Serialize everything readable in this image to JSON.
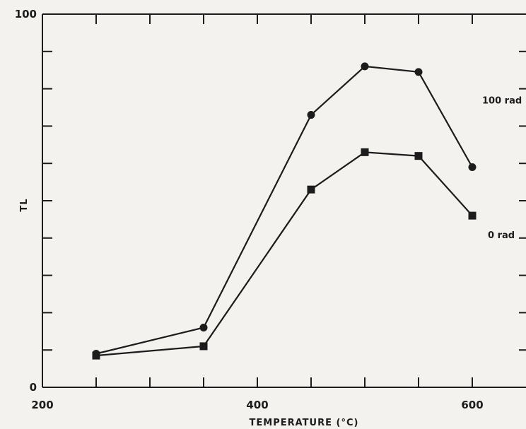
{
  "chart_data": {
    "type": "line",
    "title": "",
    "xlabel": "TEMPERATURE (°C)",
    "ylabel": "TL",
    "xlim": [
      200,
      650
    ],
    "ylim": [
      0,
      100
    ],
    "x_ticks_labeled": [
      200,
      400,
      600
    ],
    "y_ticks_labeled": [
      0,
      100
    ],
    "x_tick_values": [
      250,
      300,
      350,
      400,
      450,
      500,
      550,
      600
    ],
    "y_tick_values": [
      10,
      20,
      30,
      40,
      50,
      60,
      70,
      80,
      90
    ],
    "grid": false,
    "series": [
      {
        "name": "100 rad",
        "marker": "circle",
        "x": [
          250,
          350,
          450,
          500,
          550,
          600
        ],
        "y": [
          9,
          16,
          73,
          86,
          84.5,
          59
        ]
      },
      {
        "name": "0 rad",
        "marker": "square",
        "x": [
          250,
          350,
          450,
          500,
          550,
          600
        ],
        "y": [
          8.5,
          11,
          53,
          63,
          62,
          46
        ]
      }
    ]
  }
}
